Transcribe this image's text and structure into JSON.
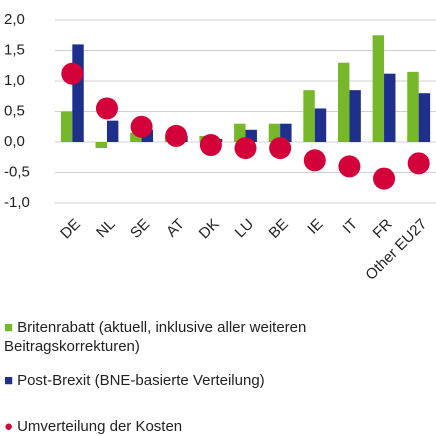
{
  "chart_data": {
    "type": "bar",
    "categories": [
      "DE",
      "NL",
      "SE",
      "AT",
      "DK",
      "LU",
      "BE",
      "IE",
      "IT",
      "FR",
      "Other EU27"
    ],
    "series": [
      {
        "name": "Britenrabatt (aktuell, inklusive aller weiteren Beitragskorrekturen)",
        "color": "#77b82a",
        "kind": "bar",
        "values": [
          0.5,
          -0.1,
          0.15,
          0.1,
          0.1,
          0.3,
          0.3,
          0.85,
          1.3,
          1.75,
          1.15
        ]
      },
      {
        "name": "Post-Brexit (BNE-basierte Verteilung)",
        "color": "#1f2f8c",
        "kind": "bar",
        "values": [
          1.6,
          0.35,
          0.2,
          0.1,
          0.05,
          0.2,
          0.3,
          0.55,
          0.85,
          1.12,
          0.8
        ]
      },
      {
        "name": "Umverteilung der Kosten",
        "color": "#d4003a",
        "kind": "dot",
        "values": [
          1.12,
          0.55,
          0.25,
          0.1,
          -0.05,
          -0.1,
          -0.1,
          -0.3,
          -0.4,
          -0.6,
          -0.35
        ]
      }
    ],
    "ylim": [
      -1.0,
      2.0
    ],
    "yticks": [
      {
        "value": -1.0,
        "label": "-1,0"
      },
      {
        "value": -0.5,
        "label": "-0,5"
      },
      {
        "value": 0,
        "label": "0,0"
      },
      {
        "value": 0.5,
        "label": "0,5"
      },
      {
        "value": 1.0,
        "label": "1,0"
      },
      {
        "value": 1.5,
        "label": "1,5"
      },
      {
        "value": 2.0,
        "label": "2,0"
      }
    ],
    "grid": true
  }
}
